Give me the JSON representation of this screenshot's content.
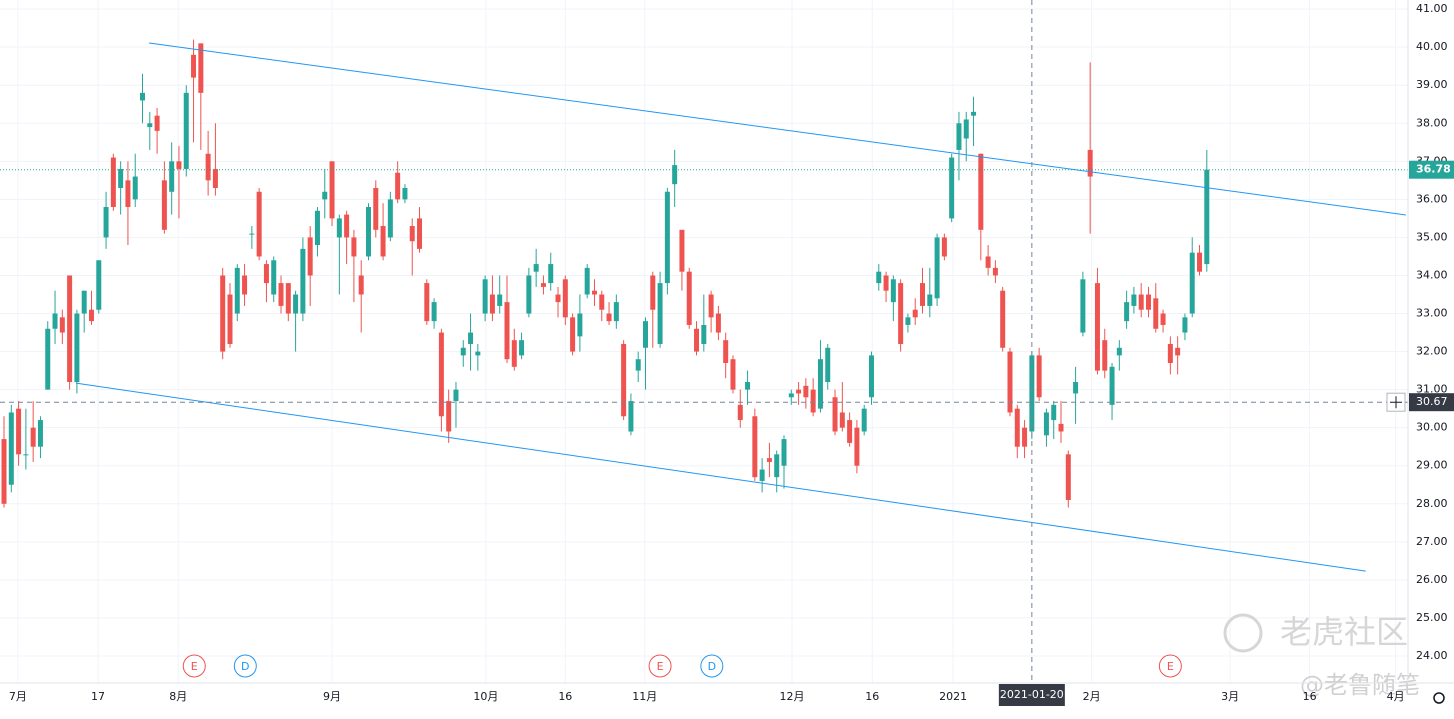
{
  "chart_data": {
    "type": "candlestick",
    "up_color": "#26a69a",
    "down_color": "#ef5350",
    "grid": true,
    "xlim": [
      -0.55,
      192.6
    ],
    "ylim": [
      23.29,
      41.24
    ],
    "yticks": [
      {
        "value": 24,
        "label": "24.00"
      },
      {
        "value": 25,
        "label": "25.00"
      },
      {
        "value": 26,
        "label": "26.00"
      },
      {
        "value": 27,
        "label": "27.00"
      },
      {
        "value": 28,
        "label": "28.00"
      },
      {
        "value": 29,
        "label": "29.00"
      },
      {
        "value": 30,
        "label": "30.00"
      },
      {
        "value": 31,
        "label": "31.00"
      },
      {
        "value": 32,
        "label": "32.00"
      },
      {
        "value": 33,
        "label": "33.00"
      },
      {
        "value": 34,
        "label": "34.00"
      },
      {
        "value": 35,
        "label": "35.00"
      },
      {
        "value": 36,
        "label": "36.00"
      },
      {
        "value": 37,
        "label": "37.00"
      },
      {
        "value": 38,
        "label": "38.00"
      },
      {
        "value": 39,
        "label": "39.00"
      },
      {
        "value": 40,
        "label": "40.00"
      },
      {
        "value": 41,
        "label": "41.00"
      }
    ],
    "xticks": [
      {
        "value": 1.9,
        "label": "7月"
      },
      {
        "value": 12.9,
        "label": "17"
      },
      {
        "value": 23.9,
        "label": "8月"
      },
      {
        "value": 45,
        "label": "9月"
      },
      {
        "value": 66.1,
        "label": "10月"
      },
      {
        "value": 77,
        "label": "16"
      },
      {
        "value": 87.9,
        "label": "11月"
      },
      {
        "value": 108.1,
        "label": "12月"
      },
      {
        "value": 119.1,
        "label": "16"
      },
      {
        "value": 130.2,
        "label": "2021"
      },
      {
        "value": 149.2,
        "label": "2月"
      },
      {
        "value": 168.2,
        "label": "3月"
      },
      {
        "value": 179.1,
        "label": "16"
      },
      {
        "value": 190.9,
        "label": "4月"
      }
    ],
    "open": [
      29.7,
      28.5,
      30.5,
      29.3,
      30.0,
      29.5,
      31.0,
      32.6,
      32.9,
      34.0,
      31.2,
      33.0,
      33.1,
      33.1,
      35.0,
      37.1,
      36.3,
      36.5,
      36.0,
      38.6,
      37.9,
      38.2,
      36.5,
      36.2,
      37.0,
      36.8,
      39.8,
      40.1,
      37.2,
      36.8,
      34.0,
      33.5,
      33.0,
      34.0,
      35.1,
      36.2,
      34.3,
      33.5,
      33.8,
      33.8,
      33.0,
      33.0,
      35.0,
      34.8,
      36.0,
      37.0,
      35.0,
      35.6,
      35.0,
      34.0,
      34.5,
      36.3,
      35.3,
      35.0,
      36.7,
      36.0,
      35.3,
      35.5,
      33.8,
      32.8,
      32.5,
      30.7,
      30.7,
      31.9,
      32.2,
      31.9,
      33.0,
      33.5,
      33.2,
      33.3,
      32.3,
      31.9,
      33.0,
      34.1,
      33.8,
      33.8,
      33.5,
      33.9,
      32.9,
      32.4,
      33.5,
      33.6,
      33.5,
      33.0,
      32.8,
      32.2,
      29.9,
      31.5,
      32.1,
      34.0,
      32.2,
      33.8,
      36.4,
      35.2,
      34.1,
      32.6,
      32.2,
      33.5,
      33.0,
      32.3,
      31.8,
      30.6,
      31.0,
      30.3,
      28.6,
      29.2,
      28.7,
      29.0,
      30.8,
      31.0,
      31.1,
      31.0,
      30.5,
      31.2,
      30.8,
      30.4,
      30.2,
      30.0,
      29.9,
      30.8,
      33.8,
      34.0,
      33.3,
      33.8,
      32.7,
      33.1,
      33.8,
      33.2,
      33.4,
      35.0,
      35.5,
      37.3,
      37.6,
      38.2,
      37.2,
      34.5,
      34.2,
      33.6,
      32.0,
      30.5,
      30.0,
      29.9,
      31.9,
      29.8,
      30.2,
      30.1,
      29.3,
      30.9,
      32.5,
      37.3,
      33.8,
      32.3,
      30.6,
      31.9,
      32.8,
      33.2,
      33.5,
      33.5,
      33.4,
      33.0,
      32.2,
      32.1,
      32.5,
      33.0,
      34.6,
      34.3
    ],
    "high": [
      30.3,
      30.6,
      30.7,
      30.5,
      30.7,
      30.3,
      32.8,
      33.6,
      33.1,
      34.0,
      33.1,
      33.6,
      33.6,
      34.4,
      36.2,
      37.2,
      37.0,
      37.0,
      37.2,
      39.3,
      38.3,
      38.4,
      37.0,
      37.5,
      37.4,
      39.0,
      40.2,
      40.1,
      37.8,
      38.0,
      34.2,
      33.8,
      34.3,
      34.3,
      35.3,
      36.3,
      34.4,
      34.5,
      34.0,
      33.8,
      33.6,
      35.0,
      35.3,
      35.8,
      36.8,
      37.0,
      35.6,
      35.7,
      35.2,
      34.4,
      35.9,
      36.5,
      35.9,
      36.2,
      37.0,
      36.4,
      35.5,
      35.8,
      33.9,
      33.4,
      32.6,
      31.0,
      31.2,
      32.3,
      33.0,
      32.2,
      34.0,
      34.0,
      34.0,
      34.0,
      32.6,
      32.5,
      34.2,
      34.7,
      34.0,
      34.6,
      33.7,
      34.0,
      33.0,
      33.5,
      34.3,
      33.9,
      33.6,
      33.3,
      33.5,
      32.3,
      30.9,
      32.0,
      32.9,
      34.1,
      34.1,
      36.3,
      37.3,
      35.2,
      34.2,
      32.8,
      33.5,
      33.6,
      33.2,
      32.5,
      31.9,
      31.0,
      31.5,
      30.5,
      29.2,
      29.6,
      29.4,
      29.8,
      31.0,
      31.2,
      31.3,
      31.3,
      32.3,
      32.2,
      31.0,
      31.2,
      30.4,
      30.2,
      30.6,
      32.0,
      34.3,
      34.1,
      34.0,
      33.9,
      33.0,
      33.4,
      34.2,
      34.2,
      35.1,
      35.1,
      37.2,
      38.3,
      38.3,
      38.7,
      37.2,
      34.8,
      34.4,
      33.7,
      32.1,
      30.6,
      30.2,
      32.0,
      32.1,
      30.5,
      30.7,
      30.7,
      29.4,
      31.6,
      34.1,
      39.6,
      34.2,
      32.6,
      31.7,
      32.3,
      33.6,
      33.7,
      33.8,
      33.7,
      33.8,
      33.1,
      32.4,
      32.4,
      33.0,
      35.0,
      34.8,
      37.3
    ],
    "low": [
      27.9,
      28.3,
      29.0,
      28.9,
      29.1,
      29.2,
      31.0,
      32.2,
      32.2,
      31.0,
      30.9,
      32.5,
      32.7,
      33.0,
      34.7,
      35.7,
      35.6,
      34.8,
      35.8,
      38.0,
      37.3,
      37.2,
      35.1,
      35.6,
      35.5,
      36.6,
      37.5,
      37.3,
      36.1,
      36.1,
      31.8,
      32.1,
      32.8,
      33.2,
      34.7,
      34.4,
      33.3,
      33.3,
      33.0,
      32.8,
      32.0,
      32.8,
      33.2,
      34.5,
      35.5,
      35.3,
      33.5,
      34.3,
      33.3,
      32.5,
      34.4,
      35.0,
      34.4,
      34.9,
      35.9,
      35.9,
      34.0,
      34.6,
      32.7,
      32.6,
      29.9,
      29.6,
      30.0,
      31.6,
      31.5,
      31.5,
      32.8,
      32.8,
      33.0,
      31.7,
      31.5,
      31.8,
      32.9,
      33.7,
      33.5,
      33.6,
      32.9,
      32.7,
      31.9,
      32.0,
      33.4,
      33.2,
      32.8,
      32.7,
      32.6,
      30.2,
      29.8,
      31.2,
      31.0,
      32.1,
      32.1,
      33.5,
      35.8,
      33.6,
      32.6,
      31.9,
      32.0,
      32.5,
      32.3,
      31.3,
      30.9,
      30.0,
      30.6,
      28.6,
      28.3,
      28.7,
      28.3,
      28.4,
      30.6,
      30.6,
      30.5,
      30.3,
      30.4,
      31.0,
      29.8,
      29.9,
      29.5,
      28.8,
      29.8,
      30.6,
      33.6,
      33.3,
      32.8,
      32.0,
      32.5,
      32.7,
      33.0,
      32.9,
      33.2,
      34.4,
      35.4,
      36.5,
      37.0,
      37.4,
      34.4,
      34.0,
      33.8,
      32.0,
      30.3,
      29.2,
      29.2,
      29.7,
      30.7,
      29.5,
      29.7,
      29.6,
      27.9,
      30.1,
      32.4,
      35.1,
      31.4,
      31.3,
      30.2,
      31.5,
      32.6,
      33.0,
      32.9,
      32.9,
      32.5,
      32.5,
      31.4,
      31.4,
      32.3,
      32.9,
      34.0,
      34.1
    ],
    "close": [
      28.0,
      30.4,
      29.3,
      29.3,
      29.5,
      30.2,
      32.6,
      33.0,
      32.5,
      31.2,
      33.0,
      33.6,
      32.8,
      34.4,
      35.8,
      35.8,
      36.8,
      35.8,
      36.6,
      38.8,
      38.0,
      37.8,
      35.2,
      37.0,
      36.8,
      38.8,
      39.2,
      38.8,
      36.5,
      36.3,
      32.0,
      32.2,
      34.2,
      33.5,
      35.1,
      34.5,
      33.8,
      34.4,
      33.2,
      33.0,
      33.5,
      34.7,
      34.0,
      35.7,
      36.2,
      35.5,
      35.5,
      35.0,
      34.5,
      33.5,
      35.8,
      35.2,
      34.5,
      36.0,
      36.0,
      36.3,
      34.9,
      34.7,
      32.8,
      33.3,
      30.3,
      29.9,
      31.0,
      32.1,
      32.5,
      32.0,
      33.9,
      33.0,
      33.5,
      31.8,
      31.6,
      32.3,
      34.0,
      34.3,
      33.7,
      34.3,
      33.3,
      32.9,
      32.0,
      33.0,
      34.2,
      33.5,
      33.1,
      32.8,
      33.3,
      30.3,
      30.7,
      31.8,
      32.8,
      33.1,
      33.8,
      36.2,
      36.9,
      34.1,
      32.7,
      32.0,
      32.7,
      32.9,
      32.5,
      31.7,
      31.0,
      30.2,
      31.2,
      28.7,
      28.9,
      29.1,
      29.3,
      29.7,
      30.9,
      30.9,
      30.8,
      30.4,
      31.8,
      32.1,
      29.9,
      30.0,
      29.6,
      29.0,
      30.5,
      31.9,
      34.1,
      33.6,
      33.9,
      32.2,
      32.9,
      32.9,
      33.2,
      33.5,
      35.0,
      34.5,
      37.1,
      38.0,
      38.1,
      38.3,
      35.2,
      34.2,
      34.0,
      32.1,
      30.4,
      29.5,
      29.5,
      31.9,
      30.8,
      30.4,
      30.6,
      29.9,
      28.1,
      31.2,
      33.9,
      36.6,
      31.5,
      31.5,
      31.6,
      32.1,
      33.3,
      33.5,
      33.1,
      33.1,
      32.6,
      32.7,
      31.7,
      31.9,
      32.9,
      34.6,
      34.1,
      36.78
    ],
    "trend_lines": [
      {
        "color": "#2196f3",
        "x": [
          19.9,
          192.3
        ],
        "y": [
          40.11,
          35.59
        ]
      },
      {
        "color": "#2196f3",
        "x": [
          9.88,
          186.8
        ],
        "y": [
          31.17,
          26.23
        ]
      }
    ],
    "events": [
      {
        "label": "E",
        "x": 26.1,
        "color": "#ef5350"
      },
      {
        "label": "D",
        "x": 33.1,
        "color": "#2196f3"
      },
      {
        "label": "E",
        "x": 90,
        "color": "#ef5350"
      },
      {
        "label": "D",
        "x": 97.1,
        "color": "#2196f3"
      },
      {
        "label": "E",
        "x": 160,
        "color": "#ef5350"
      }
    ],
    "crosshair": {
      "x": 141,
      "date": "2021-01-20",
      "price": 30.67
    },
    "watermark": [
      "老虎社区",
      "@老鲁随笔"
    ]
  }
}
